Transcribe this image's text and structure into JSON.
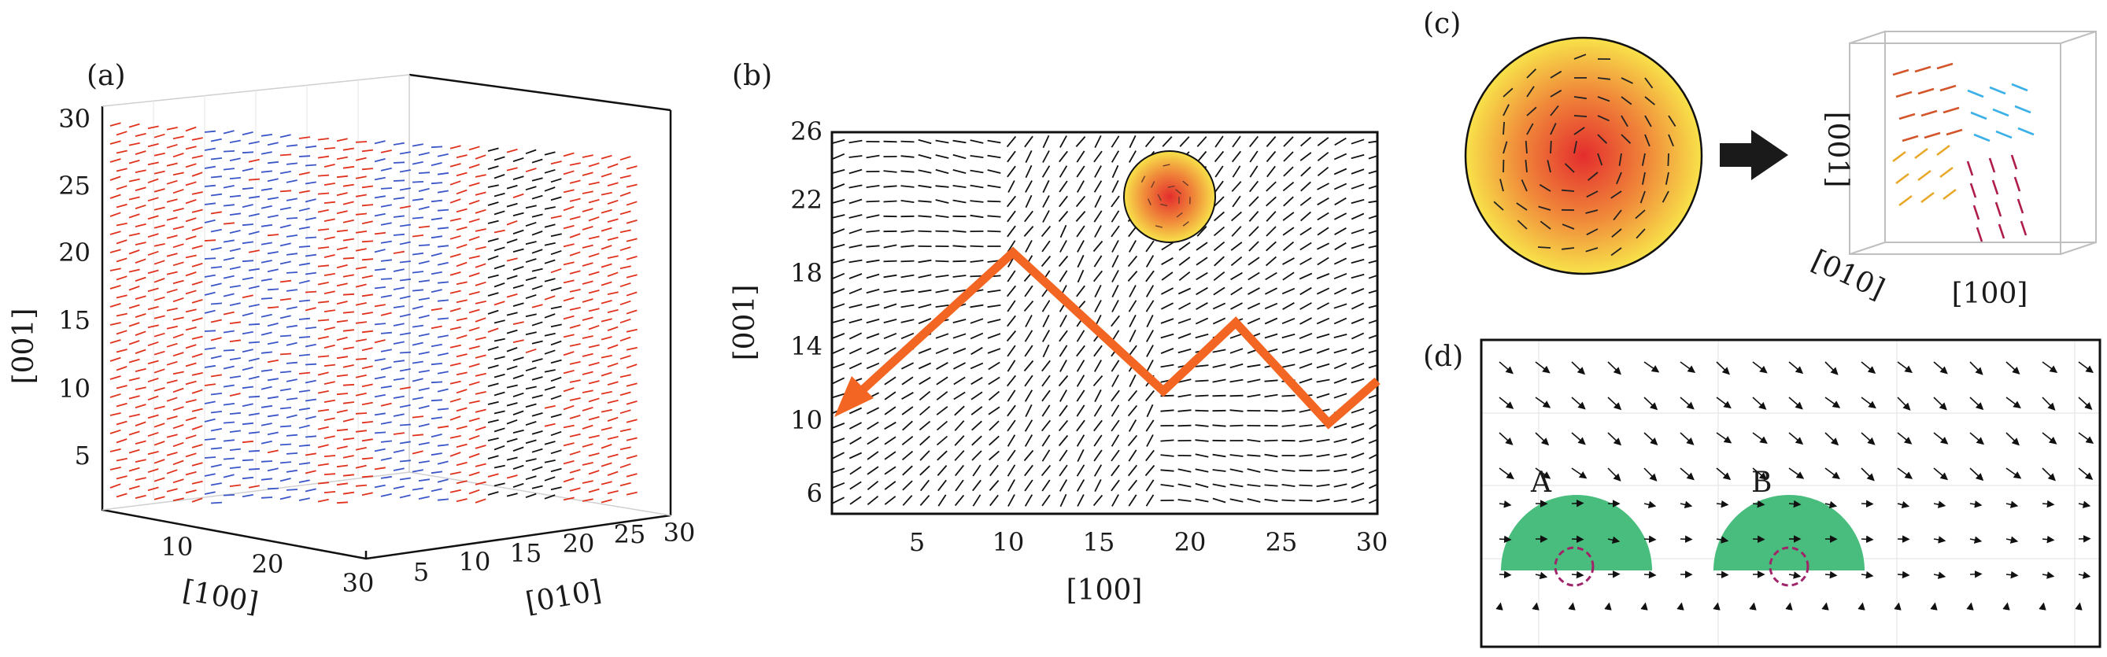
{
  "panels": {
    "a": {
      "label": "(a)",
      "z_ticks": [
        "5",
        "10",
        "15",
        "20",
        "25",
        "30"
      ],
      "x_ticks": [
        "10",
        "20",
        "30"
      ],
      "y_ticks": [
        "5",
        "10",
        "15",
        "20",
        "25",
        "30"
      ],
      "xlabel": "[100]",
      "ylabel": "[010]",
      "zlabel": "[001]",
      "colors": {
        "red": "#e0321c",
        "blue": "#3a56c8",
        "black": "#111111"
      }
    },
    "b": {
      "label": "(b)",
      "xlabel": "[100]",
      "ylabel": "[001]",
      "x_ticks": [
        "5",
        "10",
        "15",
        "20",
        "25",
        "30"
      ],
      "y_ticks": [
        "6",
        "10",
        "14",
        "18",
        "22",
        "26"
      ],
      "path_color": "#f26522",
      "inset_colors": {
        "center": "#e23a2e",
        "edge": "#f7e04a"
      }
    },
    "c": {
      "label": "(c)",
      "zlabel": "[001]",
      "xlabel": "[100]",
      "ylabel": "[010]",
      "colors": {
        "orange": "#d4552a",
        "yellow": "#e8a82a",
        "cyan": "#3ab0e6",
        "crimson": "#b01c4a"
      }
    },
    "d": {
      "label": "(d)",
      "site_a": "A",
      "site_b": "B",
      "dome_color": "#48bd7d",
      "circle_color": "#a0246a"
    }
  }
}
